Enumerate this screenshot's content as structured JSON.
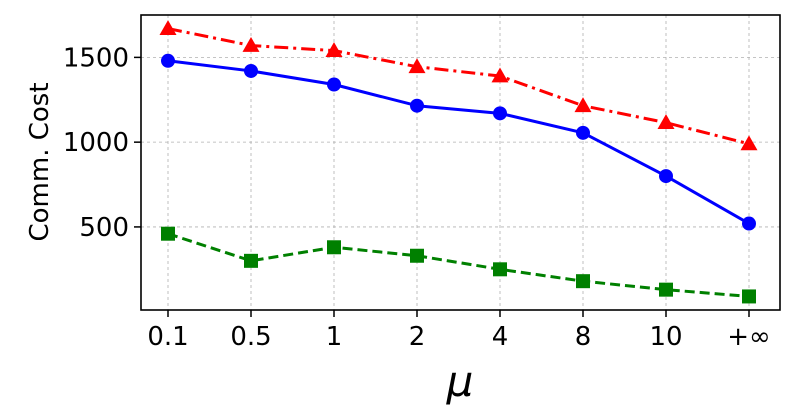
{
  "chart_data": {
    "type": "line",
    "title": "",
    "xlabel": "μ",
    "ylabel": "Comm. Cost",
    "categories": [
      "0.1",
      "0.5",
      "1",
      "2",
      "4",
      "8",
      "10",
      "+∞"
    ],
    "ylim": [
      10,
      1750
    ],
    "y_ticks": [
      500,
      1000,
      1500
    ],
    "grid": true,
    "grid_style": "dashed",
    "legend": "none",
    "series": [
      {
        "values": [
          1670,
          1570,
          1540,
          1445,
          1390,
          1215,
          1115,
          990
        ],
        "color": "#ff0000",
        "line_style": "dash-dot",
        "marker": "triangle"
      },
      {
        "values": [
          1480,
          1420,
          1340,
          1215,
          1170,
          1055,
          800,
          520
        ],
        "color": "#0000ff",
        "line_style": "solid",
        "marker": "circle"
      },
      {
        "values": [
          460,
          300,
          380,
          330,
          250,
          180,
          130,
          90
        ],
        "color": "#008000",
        "line_style": "dashed",
        "marker": "square"
      }
    ]
  }
}
